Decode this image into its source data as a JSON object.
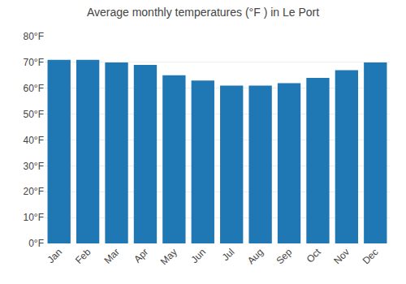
{
  "chart_data": {
    "type": "bar",
    "title": "Average monthly temperatures (°F ) in Le Port",
    "categories": [
      "Jan",
      "Feb",
      "Mar",
      "Apr",
      "May",
      "Jun",
      "Jul",
      "Aug",
      "Sep",
      "Oct",
      "Nov",
      "Dec"
    ],
    "values": [
      71,
      71,
      70,
      69,
      65,
      63,
      61,
      61,
      62,
      64,
      67,
      70
    ],
    "ylim": [
      0,
      80
    ],
    "yticks": [
      {
        "value": 0,
        "label": "0°F"
      },
      {
        "value": 10,
        "label": "10°F"
      },
      {
        "value": 20,
        "label": "20°F"
      },
      {
        "value": 30,
        "label": "30°F"
      },
      {
        "value": 40,
        "label": "40°F"
      },
      {
        "value": 50,
        "label": "50°F"
      },
      {
        "value": 60,
        "label": "60°F"
      },
      {
        "value": 70,
        "label": "70°F"
      },
      {
        "value": 80,
        "label": "80°F"
      }
    ],
    "grid": true
  }
}
